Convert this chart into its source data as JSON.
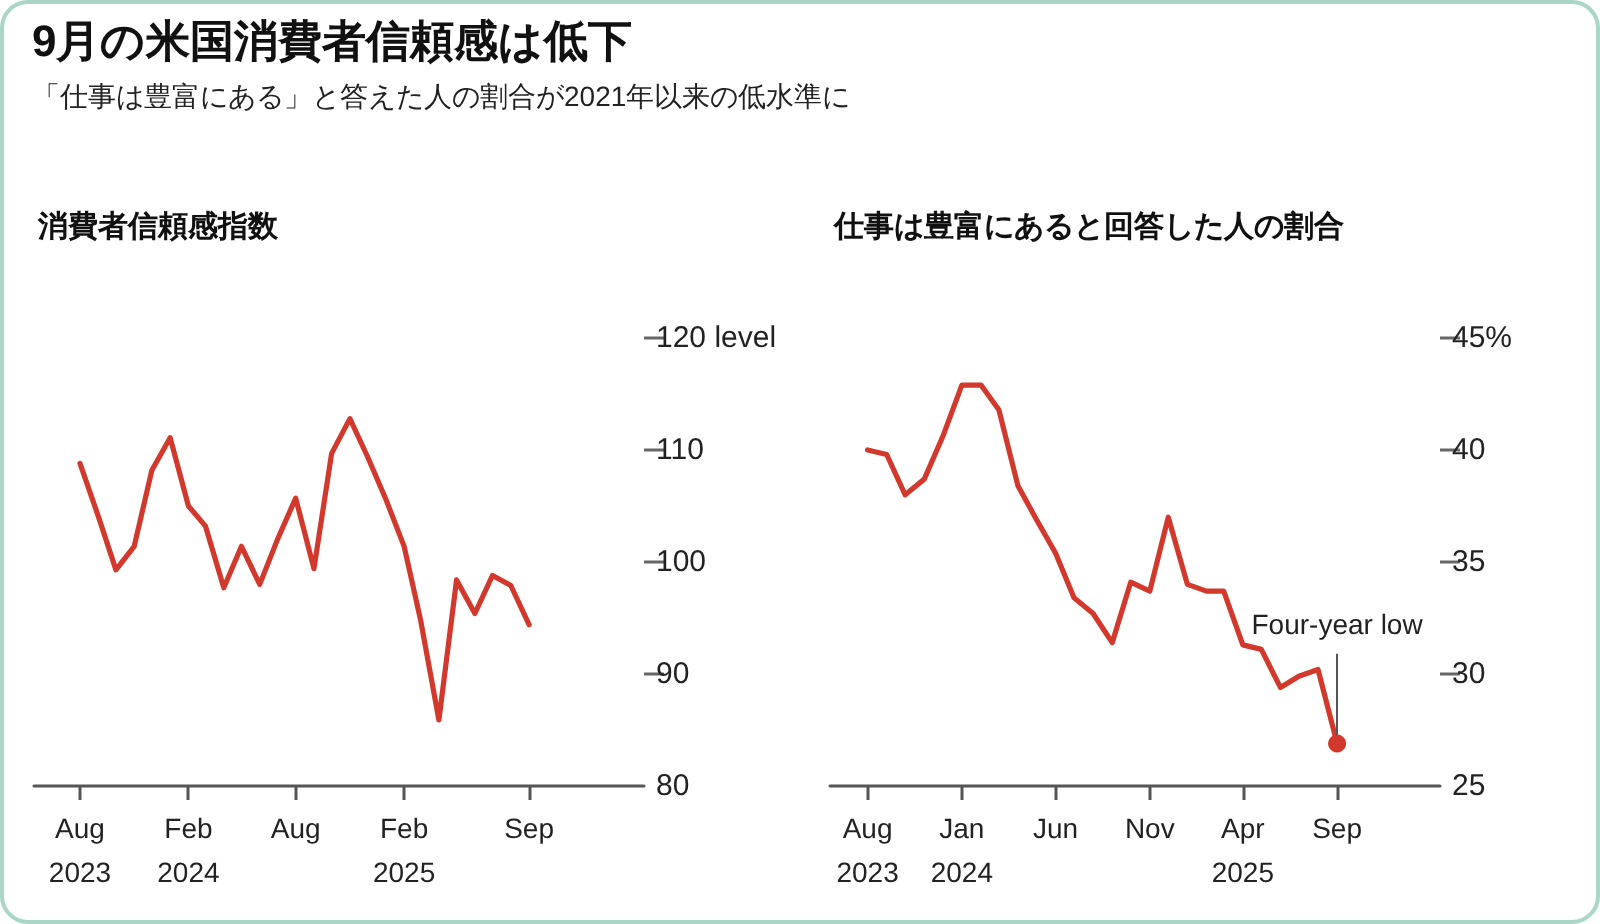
{
  "chart_data": [
    {
      "type": "other",
      "title": "9月の米国消費者信頼感は低下",
      "subtitle": "「仕事は豊富にある」と答えた人の割合が2021年以来の低水準に"
    },
    {
      "type": "line",
      "title": "消費者信頼感指数",
      "color": "#d2382b",
      "marker": "none",
      "x": [
        "2023-08",
        "2023-09",
        "2023-10",
        "2023-11",
        "2023-12",
        "2024-01",
        "2024-02",
        "2024-03",
        "2024-04",
        "2024-05",
        "2024-06",
        "2024-07",
        "2024-08",
        "2024-09",
        "2024-10",
        "2024-11",
        "2024-12",
        "2025-01",
        "2025-02",
        "2025-03",
        "2025-04",
        "2025-05",
        "2025-06",
        "2025-07",
        "2025-08",
        "2025-09"
      ],
      "values": [
        108.8,
        104.1,
        99.3,
        101.4,
        108.2,
        111.1,
        105.0,
        103.2,
        97.7,
        101.4,
        98.0,
        102.0,
        105.7,
        99.4,
        109.7,
        112.8,
        109.4,
        105.6,
        101.4,
        94.8,
        85.9,
        98.4,
        95.4,
        98.8,
        97.9,
        94.4
      ],
      "xlim": [
        "2023-05-15",
        "2026-03-15"
      ],
      "xticks": [
        {
          "value": "2023-08",
          "label": "Aug\n2023"
        },
        {
          "value": "2024-02",
          "label": "Feb\n2024"
        },
        {
          "value": "2024-08",
          "label": "Aug"
        },
        {
          "value": "2025-02",
          "label": "Feb\n2025"
        },
        {
          "value": "2025-09",
          "label": "Sep"
        }
      ],
      "ylim": [
        80,
        120
      ],
      "yticks": [
        80,
        90,
        100,
        110,
        {
          "value": 120,
          "label": "120 level"
        }
      ]
    },
    {
      "type": "line",
      "title": "仕事は豊富にあると回答した人の割合",
      "color": "#d2382b",
      "marker": "none",
      "x": [
        "2023-08",
        "2023-09",
        "2023-10",
        "2023-11",
        "2023-12",
        "2024-01",
        "2024-02",
        "2024-03",
        "2024-04",
        "2024-05",
        "2024-06",
        "2024-07",
        "2024-08",
        "2024-09",
        "2024-10",
        "2024-11",
        "2024-12",
        "2025-01",
        "2025-02",
        "2025-03",
        "2025-04",
        "2025-05",
        "2025-06",
        "2025-07",
        "2025-08",
        "2025-09"
      ],
      "values": [
        40.0,
        39.8,
        38.0,
        38.7,
        40.6,
        42.9,
        42.9,
        41.8,
        38.4,
        36.9,
        35.4,
        33.4,
        32.7,
        31.4,
        34.1,
        33.7,
        37.0,
        34.0,
        33.7,
        33.7,
        31.3,
        31.1,
        29.4,
        29.9,
        30.2,
        26.9
      ],
      "xlim": [
        "2023-06",
        "2026-02-15"
      ],
      "xticks": [
        {
          "value": "2023-08",
          "label": "Aug\n2023"
        },
        {
          "value": "2024-01",
          "label": "Jan\n2024"
        },
        {
          "value": "2024-06",
          "label": "Jun"
        },
        {
          "value": "2024-11",
          "label": "Nov"
        },
        {
          "value": "2025-04",
          "label": "Apr\n2025"
        },
        {
          "value": "2025-09",
          "label": "Sep"
        }
      ],
      "ylim": [
        25,
        45
      ],
      "yticks": [
        25,
        30,
        35,
        40,
        {
          "value": 45,
          "label": "45%"
        }
      ],
      "annotations": [
        {
          "text": "Four-year low",
          "x": "2025-09",
          "y": 26.9
        }
      ]
    }
  ]
}
